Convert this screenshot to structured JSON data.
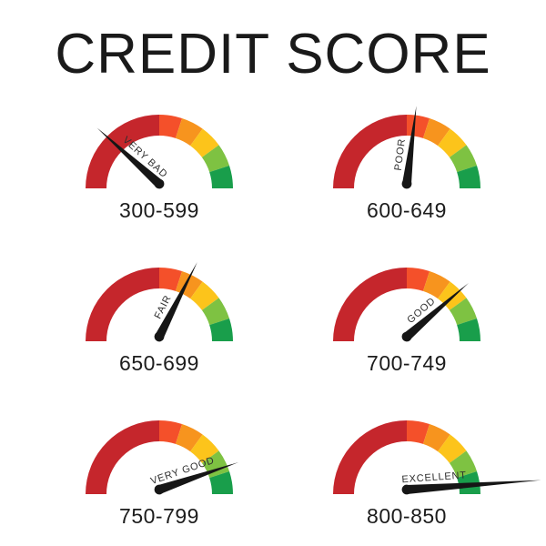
{
  "title": "CREDIT SCORE",
  "background_color": "#ffffff",
  "chart_data": {
    "type": "gauge",
    "title": "CREDIT SCORE",
    "scale": {
      "min": 300,
      "max": 850
    },
    "legend_position": "none",
    "segments": [
      {
        "name": "dark-red",
        "color": "#c5262c",
        "start_angle": 180,
        "end_angle": 90
      },
      {
        "name": "red-orange",
        "color": "#f4502a",
        "start_angle": 90,
        "end_angle": 72
      },
      {
        "name": "orange",
        "color": "#f7941e",
        "start_angle": 72,
        "end_angle": 54
      },
      {
        "name": "yellow",
        "color": "#fcc41b",
        "start_angle": 54,
        "end_angle": 36
      },
      {
        "name": "light-green",
        "color": "#7ec242",
        "start_angle": 36,
        "end_angle": 18
      },
      {
        "name": "green",
        "color": "#199e4b",
        "start_angle": 18,
        "end_angle": 0
      }
    ],
    "gauges": [
      {
        "label": "VERY BAD",
        "range": "300-599",
        "needle_angle": 138,
        "needle_length": 92
      },
      {
        "label": "POOR",
        "range": "600-649",
        "needle_angle": 83,
        "needle_length": 86
      },
      {
        "label": "FAIR",
        "range": "650-699",
        "needle_angle": 63,
        "needle_length": 92
      },
      {
        "label": "GOOD",
        "range": "700-749",
        "needle_angle": 41,
        "needle_length": 90
      },
      {
        "label": "VERY GOOD",
        "range": "750-799",
        "needle_angle": 19,
        "needle_length": 92
      },
      {
        "label": "EXCELLENT",
        "range": "800-850",
        "needle_angle": 4,
        "needle_length": 148
      }
    ],
    "needle_color": "#161616",
    "needle_label_color": "#2e2e2e",
    "range_label_color": "#1c1c1c"
  }
}
